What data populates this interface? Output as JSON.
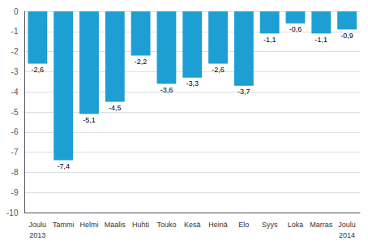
{
  "chart_data": {
    "type": "bar",
    "categories": [
      "Joulu",
      "Tammi",
      "Helmi",
      "Maalis",
      "Huhti",
      "Touko",
      "Kesä",
      "Heinä",
      "Elo",
      "Syys",
      "Loka",
      "Marras",
      "Joulu"
    ],
    "values": [
      -2.6,
      -7.4,
      -5.1,
      -4.5,
      -2.2,
      -3.6,
      -3.3,
      -2.6,
      -3.7,
      -1.1,
      -0.6,
      -1.1,
      -0.9
    ],
    "value_labels": [
      "-2,6",
      "-7,4",
      "-5,1",
      "-4,5",
      "-2,2",
      "-3,6",
      "-3,3",
      "-2,6",
      "-3,7",
      "-1,1",
      "-0,6",
      "-1,1",
      "-0,9"
    ],
    "data_labels": true,
    "color": "#1e9fd4",
    "ylim": [
      -10,
      0
    ],
    "yticks": [
      0,
      -1,
      -2,
      -3,
      -4,
      -5,
      -6,
      -7,
      -8,
      -9,
      -10
    ],
    "grid": true,
    "annotations": [
      {
        "text": "2013",
        "x": 0
      },
      {
        "text": "2014",
        "x": 12
      }
    ]
  }
}
